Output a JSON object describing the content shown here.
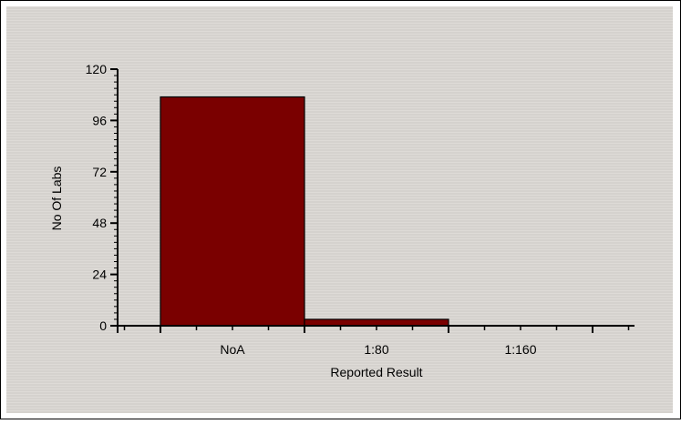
{
  "chart_data": {
    "type": "bar",
    "title": "",
    "xlabel": "Reported Result",
    "ylabel": "No Of Labs",
    "categories": [
      "NoA",
      "1:80",
      "1:160"
    ],
    "values": [
      107,
      3,
      0
    ],
    "ylim": [
      0,
      120
    ],
    "yticks": [
      0,
      24,
      48,
      72,
      96,
      120
    ],
    "bar_color": "#7a0000",
    "grid": false,
    "legend": "none"
  }
}
